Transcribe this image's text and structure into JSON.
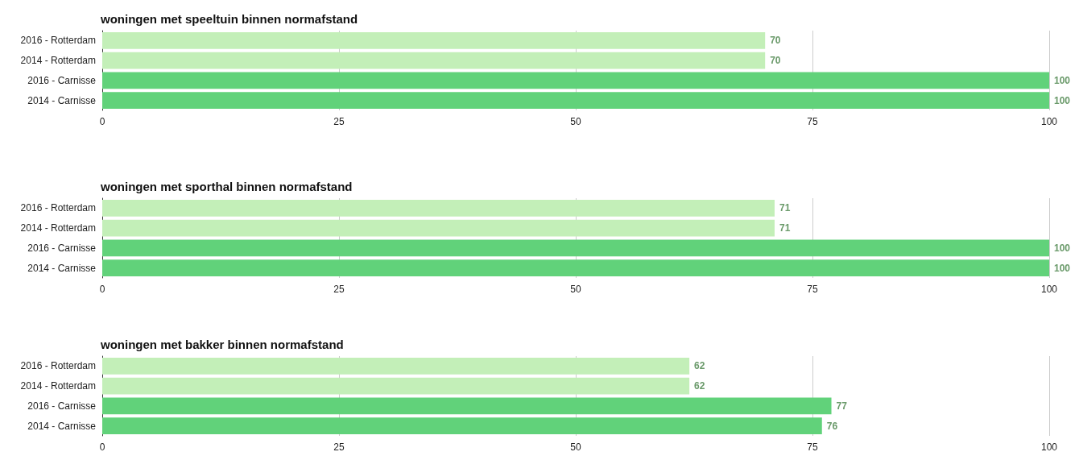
{
  "chart_data": [
    {
      "type": "bar",
      "orientation": "horizontal",
      "title": "woningen met speeltuin binnen normafstand",
      "categories": [
        "2016 - Rotterdam",
        "2014 - Rotterdam",
        "2016 - Carnisse",
        "2014 - Carnisse"
      ],
      "values": [
        70,
        70,
        100,
        100
      ],
      "colors": [
        "#c3efb8",
        "#c3efb8",
        "#61d27a",
        "#61d27a"
      ],
      "xlim": [
        0,
        100
      ],
      "xticks": [
        0,
        25,
        50,
        75,
        100
      ],
      "grid": "x",
      "data_labels": true
    },
    {
      "type": "bar",
      "orientation": "horizontal",
      "title": "woningen met sporthal binnen normafstand",
      "categories": [
        "2016 - Rotterdam",
        "2014 - Rotterdam",
        "2016 - Carnisse",
        "2014 - Carnisse"
      ],
      "values": [
        71,
        71,
        100,
        100
      ],
      "colors": [
        "#c3efb8",
        "#c3efb8",
        "#61d27a",
        "#61d27a"
      ],
      "xlim": [
        0,
        100
      ],
      "xticks": [
        0,
        25,
        50,
        75,
        100
      ],
      "grid": "x",
      "data_labels": true
    },
    {
      "type": "bar",
      "orientation": "horizontal",
      "title": "woningen met bakker binnen normafstand",
      "categories": [
        "2016 - Rotterdam",
        "2014 - Rotterdam",
        "2016 - Carnisse",
        "2014 - Carnisse"
      ],
      "values": [
        62,
        62,
        77,
        76
      ],
      "colors": [
        "#c3efb8",
        "#c3efb8",
        "#61d27a",
        "#61d27a"
      ],
      "xlim": [
        0,
        100
      ],
      "xticks": [
        0,
        25,
        50,
        75,
        100
      ],
      "grid": "x",
      "data_labels": true
    }
  ]
}
